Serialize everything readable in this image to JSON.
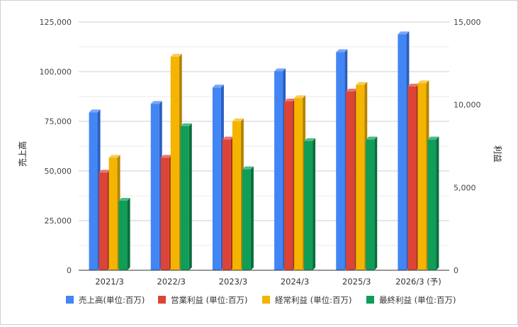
{
  "chart_data": {
    "type": "bar",
    "title": "",
    "categories": [
      "2021/3",
      "2022/3",
      "2023/3",
      "2024/3",
      "2025/3",
      "2026/3 (予)"
    ],
    "left_axis": {
      "label": "売上高",
      "min": 0,
      "max": 125000,
      "ticks": [
        "0",
        "25,000",
        "50,000",
        "75,000",
        "100,000",
        "125,000"
      ],
      "tick_values": [
        0,
        25000,
        50000,
        75000,
        100000,
        125000
      ]
    },
    "right_axis": {
      "label": "利益",
      "min": 0,
      "max": 15000,
      "ticks": [
        "0",
        "5,000",
        "10,000",
        "15,000"
      ],
      "tick_values": [
        0,
        5000,
        10000,
        15000
      ]
    },
    "series": [
      {
        "name": "売上高(単位:百万)",
        "axis": "left",
        "color": "#4285F4",
        "side_color": "#2a5fc0",
        "top_color": "#7aa6f8",
        "values": [
          79500,
          83800,
          92000,
          100200,
          109800,
          118800
        ]
      },
      {
        "name": "営業利益 (単位:百万)",
        "axis": "right",
        "color": "#DB4437",
        "side_color": "#9e2e24",
        "top_color": "#e9776d",
        "values": [
          5900,
          6800,
          7900,
          10200,
          10800,
          11100
        ]
      },
      {
        "name": "経常利益 (単位:百万)",
        "axis": "right",
        "color": "#F4B400",
        "side_color": "#b38400",
        "top_color": "#f8cd55",
        "values": [
          6800,
          12900,
          9000,
          10400,
          11200,
          11300
        ]
      },
      {
        "name": "最終利益 (単位:百万)",
        "axis": "right",
        "color": "#0F9D58",
        "side_color": "#0a6d3d",
        "top_color": "#4dbb84",
        "values": [
          4200,
          8700,
          6100,
          7800,
          7900,
          7900
        ]
      }
    ],
    "grid": true,
    "legend_position": "bottom"
  }
}
